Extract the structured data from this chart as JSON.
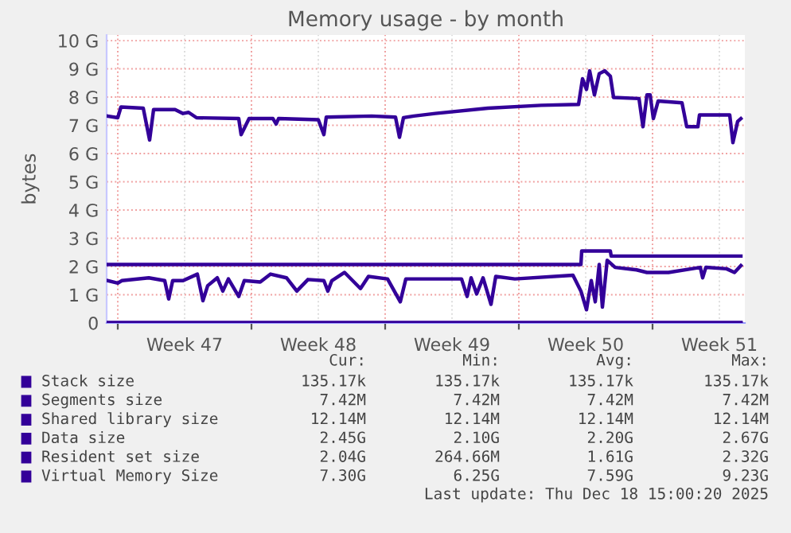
{
  "chart_data": {
    "type": "line",
    "title": "Memory usage - by month",
    "ylabel": "bytes",
    "xlim": [
      "2025-11-15T10:00",
      "2025-12-18T20:00"
    ],
    "ylim": [
      0,
      10.2
    ],
    "xticks": [
      {
        "value": "2025-11-16",
        "label": null
      },
      {
        "value": "2025-11-19T12:00",
        "label": "Week 47"
      },
      {
        "value": "2025-11-23",
        "label": null
      },
      {
        "value": "2025-11-26T12:00",
        "label": "Week 48"
      },
      {
        "value": "2025-11-30",
        "label": null
      },
      {
        "value": "2025-12-03T12:00",
        "label": "Week 49"
      },
      {
        "value": "2025-12-07",
        "label": null
      },
      {
        "value": "2025-12-10T12:00",
        "label": "Week 50"
      },
      {
        "value": "2025-12-14",
        "label": null
      },
      {
        "value": "2025-12-17T12:00",
        "label": "Week 51"
      }
    ],
    "yticks": [
      0,
      {
        "value": 1,
        "label": "1 G"
      },
      {
        "value": 2,
        "label": "2 G"
      },
      {
        "value": 3,
        "label": "3 G"
      },
      {
        "value": 4,
        "label": "4 G"
      },
      {
        "value": 5,
        "label": "5 G"
      },
      {
        "value": 6,
        "label": "6 G"
      },
      {
        "value": 7,
        "label": "7 G"
      },
      {
        "value": 8,
        "label": "8 G"
      },
      {
        "value": 9,
        "label": "9 G"
      },
      {
        "value": 10,
        "label": "10 G"
      }
    ],
    "grid": true,
    "legend": "bottom",
    "series": [
      {
        "name": "Stack size",
        "color": "#330099",
        "x": [
          "2025-11-15T11:00",
          "2025-12-18T15:00"
        ],
        "values": [
          0,
          0
        ]
      },
      {
        "name": "Segments size",
        "color": "#330099",
        "x": [
          "2025-11-15T11:00",
          "2025-12-18T15:00"
        ],
        "values": [
          0.01,
          0.01
        ]
      },
      {
        "name": "Shared library size",
        "color": "#330099",
        "x": [
          "2025-11-15T11:00",
          "2025-12-18T15:00"
        ],
        "values": [
          0.01,
          0.01
        ]
      },
      {
        "name": "Data size",
        "color": "#330099",
        "x": [
          "2025-11-15T11:00",
          "2025-12-10T06:00",
          "2025-12-10T07:00",
          "2025-12-11T19:00",
          "2025-12-11T20:00",
          "2025-12-18T15:00"
        ],
        "values": [
          2.07,
          2.07,
          2.55,
          2.55,
          2.37,
          2.37
        ]
      },
      {
        "name": "Resident set size",
        "color": "#330099",
        "x": [
          "2025-11-15T11:00",
          "2025-11-16T00:00",
          "2025-11-16T05:00",
          "2025-11-17T15:00",
          "2025-11-18T11:00",
          "2025-11-18T16:00",
          "2025-11-18T21:00",
          "2025-11-19T10:00",
          "2025-11-20T04:00",
          "2025-11-20T11:00",
          "2025-11-20T17:00",
          "2025-11-21T05:00",
          "2025-11-21T12:00",
          "2025-11-21T19:00",
          "2025-11-22T08:00",
          "2025-11-22T15:00",
          "2025-11-23T11:00",
          "2025-11-24T00:00",
          "2025-11-24T20:00",
          "2025-11-25T09:00",
          "2025-11-25T23:00",
          "2025-11-26T19:00",
          "2025-11-27T00:00",
          "2025-11-27T05:00",
          "2025-11-27T21:00",
          "2025-11-28T17:00",
          "2025-11-29T03:00",
          "2025-11-30T03:00",
          "2025-11-30T19:00",
          "2025-12-01T02:00",
          "2025-12-04T00:00",
          "2025-12-04T07:00",
          "2025-12-04T12:00",
          "2025-12-04T19:00",
          "2025-12-05T03:00",
          "2025-12-05T13:00",
          "2025-12-05T19:00",
          "2025-12-06T19:00",
          "2025-12-09T20:00",
          "2025-12-10T06:00",
          "2025-12-10T13:00",
          "2025-12-10T19:00",
          "2025-12-11T00:00",
          "2025-12-11T05:00",
          "2025-12-11T09:00",
          "2025-12-11T15:00",
          "2025-12-12T01:00",
          "2025-12-13T04:00",
          "2025-12-13T17:00",
          "2025-12-14T20:00",
          "2025-12-16T12:00",
          "2025-12-16T15:00",
          "2025-12-16T19:00",
          "2025-12-17T21:00",
          "2025-12-18T07:00",
          "2025-12-18T15:00"
        ],
        "values": [
          1.5,
          1.41,
          1.5,
          1.6,
          1.5,
          0.85,
          1.5,
          1.5,
          1.73,
          0.79,
          1.32,
          1.6,
          1.13,
          1.56,
          0.94,
          1.5,
          1.45,
          1.73,
          1.6,
          1.13,
          1.54,
          1.5,
          1.13,
          1.5,
          1.79,
          1.22,
          1.65,
          1.56,
          0.75,
          1.56,
          1.56,
          0.94,
          1.6,
          1.03,
          1.6,
          0.66,
          1.65,
          1.56,
          1.69,
          1.13,
          0.47,
          1.5,
          0.75,
          2.07,
          0.56,
          2.22,
          1.97,
          1.88,
          1.79,
          1.79,
          1.97,
          1.6,
          1.97,
          1.92,
          1.79,
          2.03
        ]
      },
      {
        "name": "Virtual Memory Size",
        "color": "#330099",
        "x": [
          "2025-11-15T11:00",
          "2025-11-16T00:00",
          "2025-11-16T04:00",
          "2025-11-17T08:00",
          "2025-11-17T16:00",
          "2025-11-17T21:00",
          "2025-11-19T00:00",
          "2025-11-19T10:00",
          "2025-11-19T17:00",
          "2025-11-20T03:00",
          "2025-11-22T08:00",
          "2025-11-22T11:00",
          "2025-11-22T21:00",
          "2025-11-24T03:00",
          "2025-11-24T07:00",
          "2025-11-24T10:00",
          "2025-11-26T12:00",
          "2025-11-26T19:00",
          "2025-11-26T22:00",
          "2025-11-29T07:00",
          "2025-11-30T13:00",
          "2025-11-30T18:00",
          "2025-11-30T23:00",
          "2025-12-01T12:00",
          "2025-12-02T15:00",
          "2025-12-05T09:00",
          "2025-12-08T04:00",
          "2025-12-10T03:00",
          "2025-12-10T08:00",
          "2025-12-10T13:00",
          "2025-12-10T17:00",
          "2025-12-10T23:00",
          "2025-12-11T05:00",
          "2025-12-11T12:00",
          "2025-12-11T19:00",
          "2025-12-11T23:00",
          "2025-12-13T07:00",
          "2025-12-13T12:00",
          "2025-12-13T17:00",
          "2025-12-13T21:00",
          "2025-12-14T01:00",
          "2025-12-14T07:00",
          "2025-12-15T13:00",
          "2025-12-15T19:00",
          "2025-12-16T09:00",
          "2025-12-16T11:00",
          "2025-12-18T01:00",
          "2025-12-18T05:00",
          "2025-12-18T11:00",
          "2025-12-18T15:00"
        ],
        "values": [
          7.33,
          7.27,
          7.65,
          7.61,
          6.48,
          7.56,
          7.56,
          7.42,
          7.46,
          7.27,
          7.24,
          6.67,
          7.24,
          7.24,
          7.05,
          7.24,
          7.2,
          6.67,
          7.29,
          7.33,
          7.29,
          6.58,
          7.27,
          7.33,
          7.42,
          7.61,
          7.71,
          7.74,
          8.65,
          8.27,
          8.93,
          8.08,
          8.83,
          8.93,
          8.74,
          7.99,
          7.95,
          6.95,
          8.08,
          8.08,
          7.24,
          7.86,
          7.8,
          6.95,
          6.95,
          7.37,
          7.37,
          6.39,
          7.14,
          7.24
        ]
      }
    ],
    "annotations": [
      "Cur:",
      "Min:",
      "Avg:",
      "Max:",
      "135.17k",
      "135.17k",
      "135.17k",
      "135.17k",
      "7.42M",
      "7.42M",
      "7.42M",
      "7.42M",
      "12.14M",
      "12.14M",
      "12.14M",
      "12.14M",
      "2.45G",
      "2.10G",
      "2.20G",
      "2.67G",
      "2.04G",
      "264.66M",
      "1.61G",
      "2.32G",
      "7.30G",
      "6.25G",
      "7.59G",
      "9.23G",
      "Last update: Thu Dec 18 15:00:20 2025"
    ]
  }
}
